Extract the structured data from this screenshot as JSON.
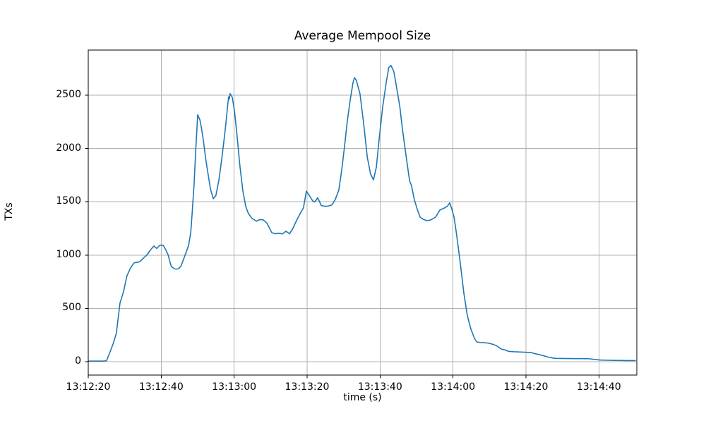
{
  "chart_data": {
    "type": "line",
    "title": "Average Mempool Size",
    "xlabel": "time (s)",
    "ylabel": "TXs",
    "grid": true,
    "legend": null,
    "line_color": "#1f77b4",
    "grid_color": "#b0b0b0",
    "spine_color": "#000000",
    "background_color": "#ffffff",
    "x_axis": {
      "tick_labels": [
        "13:12:20",
        "13:12:40",
        "13:13:00",
        "13:13:20",
        "13:13:40",
        "13:14:00",
        "13:14:20",
        "13:14:40"
      ],
      "tick_seconds": [
        0,
        20,
        40,
        60,
        80,
        100,
        120,
        140
      ]
    },
    "y_axis": {
      "tick_values": [
        0,
        500,
        1000,
        1500,
        2000,
        2500
      ],
      "tick_labels": [
        "0",
        "500",
        "1000",
        "1500",
        "2000",
        "2500"
      ]
    },
    "xlim_seconds": [
      0,
      150.4
    ],
    "ylim": [
      -126,
      2924
    ],
    "series": [
      {
        "name": "average-mempool-size",
        "points": [
          [
            0,
            5
          ],
          [
            1,
            5
          ],
          [
            2,
            5
          ],
          [
            3,
            5
          ],
          [
            4,
            5
          ],
          [
            5,
            8
          ],
          [
            5.8,
            75
          ],
          [
            6.8,
            165
          ],
          [
            7.7,
            265
          ],
          [
            8.7,
            550
          ],
          [
            9.7,
            660
          ],
          [
            10.6,
            805
          ],
          [
            11.6,
            880
          ],
          [
            12.6,
            928
          ],
          [
            13.5,
            932
          ],
          [
            14.1,
            938
          ],
          [
            15.1,
            970
          ],
          [
            16.1,
            1002
          ],
          [
            17,
            1046
          ],
          [
            18,
            1085
          ],
          [
            18.8,
            1062
          ],
          [
            19.5,
            1088
          ],
          [
            19.9,
            1094
          ],
          [
            20.6,
            1090
          ],
          [
            21.3,
            1046
          ],
          [
            21.9,
            1002
          ],
          [
            22.3,
            947
          ],
          [
            22.8,
            892
          ],
          [
            23.6,
            872
          ],
          [
            24.2,
            868
          ],
          [
            24.8,
            872
          ],
          [
            25.5,
            902
          ],
          [
            26.1,
            958
          ],
          [
            26.7,
            1013
          ],
          [
            27.5,
            1090
          ],
          [
            28.1,
            1210
          ],
          [
            28.5,
            1400
          ],
          [
            29,
            1655
          ],
          [
            29.5,
            2000
          ],
          [
            30,
            2317
          ],
          [
            30.6,
            2270
          ],
          [
            31,
            2200
          ],
          [
            31.5,
            2090
          ],
          [
            32.3,
            1880
          ],
          [
            32.9,
            1750
          ],
          [
            33.5,
            1620
          ],
          [
            34.3,
            1529
          ],
          [
            35,
            1560
          ],
          [
            35.8,
            1700
          ],
          [
            36.6,
            1900
          ],
          [
            37.4,
            2130
          ],
          [
            37.9,
            2290
          ],
          [
            38.3,
            2430
          ],
          [
            38.5,
            2485
          ],
          [
            38.7,
            2465
          ],
          [
            38.9,
            2515
          ],
          [
            39.5,
            2480
          ],
          [
            40.1,
            2350
          ],
          [
            40.8,
            2120
          ],
          [
            41.6,
            1830
          ],
          [
            42.4,
            1600
          ],
          [
            43.2,
            1455
          ],
          [
            43.9,
            1390
          ],
          [
            44.9,
            1345
          ],
          [
            46.1,
            1318
          ],
          [
            47,
            1333
          ],
          [
            48,
            1330
          ],
          [
            49,
            1300
          ],
          [
            50.3,
            1211
          ],
          [
            51.3,
            1200
          ],
          [
            52.3,
            1205
          ],
          [
            53.2,
            1198
          ],
          [
            54.2,
            1224
          ],
          [
            55.2,
            1200
          ],
          [
            56.1,
            1250
          ],
          [
            57.1,
            1324
          ],
          [
            58.1,
            1390
          ],
          [
            59,
            1443
          ],
          [
            59.8,
            1600
          ],
          [
            60.6,
            1560
          ],
          [
            61.5,
            1510
          ],
          [
            62.1,
            1498
          ],
          [
            62.9,
            1538
          ],
          [
            63.9,
            1465
          ],
          [
            64.8,
            1458
          ],
          [
            65.8,
            1460
          ],
          [
            66.8,
            1470
          ],
          [
            67.7,
            1520
          ],
          [
            68.7,
            1610
          ],
          [
            69.5,
            1800
          ],
          [
            70.2,
            2000
          ],
          [
            71,
            2250
          ],
          [
            71.8,
            2450
          ],
          [
            72.6,
            2620
          ],
          [
            73,
            2665
          ],
          [
            73.5,
            2640
          ],
          [
            74.5,
            2515
          ],
          [
            75.5,
            2238
          ],
          [
            76.5,
            1920
          ],
          [
            77.4,
            1761
          ],
          [
            78.2,
            1705
          ],
          [
            79,
            1827
          ],
          [
            79.7,
            2072
          ],
          [
            80.7,
            2383
          ],
          [
            81.7,
            2621
          ],
          [
            82.4,
            2760
          ],
          [
            83,
            2780
          ],
          [
            83.8,
            2720
          ],
          [
            84.6,
            2560
          ],
          [
            85.4,
            2400
          ],
          [
            86.1,
            2193
          ],
          [
            87.1,
            1940
          ],
          [
            88.1,
            1697
          ],
          [
            88.6,
            1655
          ],
          [
            89.4,
            1520
          ],
          [
            90.2,
            1430
          ],
          [
            91,
            1355
          ],
          [
            91.9,
            1335
          ],
          [
            92.9,
            1322
          ],
          [
            93.9,
            1330
          ],
          [
            95.2,
            1355
          ],
          [
            96.4,
            1422
          ],
          [
            97.7,
            1443
          ],
          [
            98.5,
            1460
          ],
          [
            99.1,
            1490
          ],
          [
            99.7,
            1430
          ],
          [
            100.3,
            1355
          ],
          [
            101,
            1190
          ],
          [
            102,
            925
          ],
          [
            103,
            637
          ],
          [
            103.9,
            437
          ],
          [
            104.9,
            306
          ],
          [
            105.9,
            218
          ],
          [
            106.5,
            185
          ],
          [
            107.4,
            180
          ],
          [
            108.4,
            178
          ],
          [
            109.4,
            175
          ],
          [
            110.7,
            165
          ],
          [
            111.9,
            150
          ],
          [
            113.2,
            119
          ],
          [
            114.2,
            110
          ],
          [
            115.2,
            97
          ],
          [
            116.7,
            93
          ],
          [
            118.5,
            90
          ],
          [
            120,
            88
          ],
          [
            121.4,
            85
          ],
          [
            122.5,
            75
          ],
          [
            124.3,
            60
          ],
          [
            125.2,
            52
          ],
          [
            126.2,
            42
          ],
          [
            127.2,
            35
          ],
          [
            128.1,
            31
          ],
          [
            129.7,
            30
          ],
          [
            131.6,
            29
          ],
          [
            133.5,
            28
          ],
          [
            135.5,
            28
          ],
          [
            137.4,
            27
          ],
          [
            139,
            20
          ],
          [
            140.4,
            15
          ],
          [
            142.3,
            13
          ],
          [
            144.2,
            12
          ],
          [
            146.1,
            11
          ],
          [
            148.1,
            10
          ],
          [
            150,
            10
          ]
        ]
      }
    ]
  }
}
